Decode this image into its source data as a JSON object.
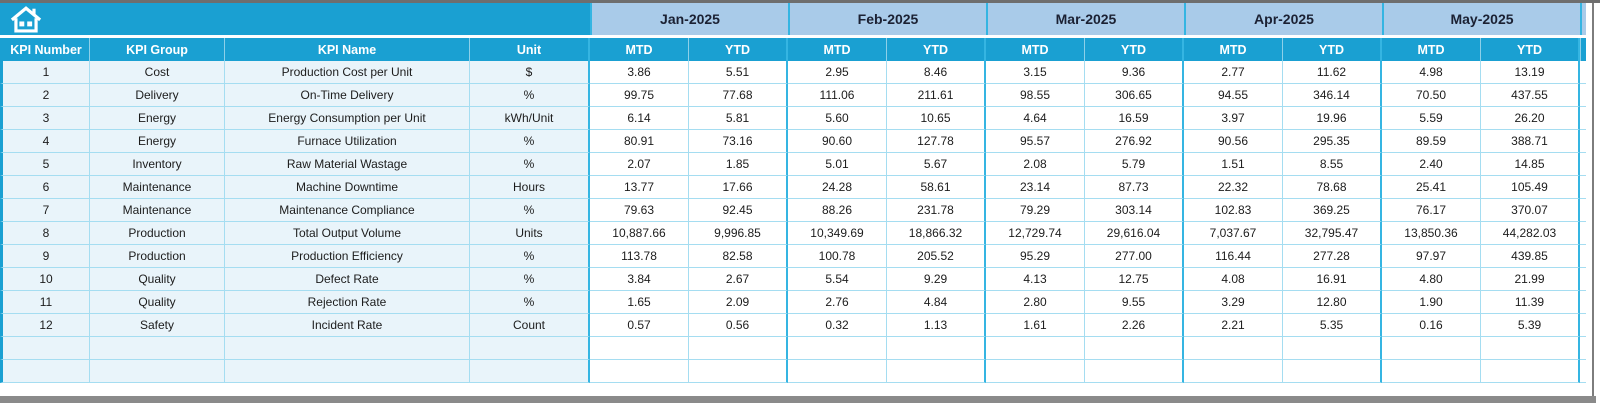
{
  "colors": {
    "header_cyan": "#1AA0D2",
    "month_blue": "#A9CBE9",
    "row_tint": "#E9F4FA",
    "border_strong": "#35B5E2",
    "border_light": "#A5DDF1",
    "month_text": "#1B2133",
    "chrome_gray_top": "#6e6e6e",
    "chrome_gray_bottom": "#8a8a8a"
  },
  "icons": {
    "home": "home-icon"
  },
  "table": {
    "left_columns": [
      "KPI Number",
      "KPI Group",
      "KPI Name",
      "Unit"
    ],
    "months": [
      "Jan-2025",
      "Feb-2025",
      "Mar-2025",
      "Apr-2025",
      "May-2025"
    ],
    "sub_columns": [
      "MTD",
      "YTD"
    ],
    "rows": [
      {
        "number": "1",
        "group": "Cost",
        "name": "Production Cost per Unit",
        "unit": "$",
        "values": [
          "3.86",
          "5.51",
          "2.95",
          "8.46",
          "3.15",
          "9.36",
          "2.77",
          "11.62",
          "4.98",
          "13.19"
        ]
      },
      {
        "number": "2",
        "group": "Delivery",
        "name": "On-Time Delivery",
        "unit": "%",
        "values": [
          "99.75",
          "77.68",
          "111.06",
          "211.61",
          "98.55",
          "306.65",
          "94.55",
          "346.14",
          "70.50",
          "437.55"
        ]
      },
      {
        "number": "3",
        "group": "Energy",
        "name": "Energy Consumption per Unit",
        "unit": "kWh/Unit",
        "values": [
          "6.14",
          "5.81",
          "5.60",
          "10.65",
          "4.64",
          "16.59",
          "3.97",
          "19.96",
          "5.59",
          "26.20"
        ]
      },
      {
        "number": "4",
        "group": "Energy",
        "name": "Furnace Utilization",
        "unit": "%",
        "values": [
          "80.91",
          "73.16",
          "90.60",
          "127.78",
          "95.57",
          "276.92",
          "90.56",
          "295.35",
          "89.59",
          "388.71"
        ]
      },
      {
        "number": "5",
        "group": "Inventory",
        "name": "Raw Material Wastage",
        "unit": "%",
        "values": [
          "2.07",
          "1.85",
          "5.01",
          "5.67",
          "2.08",
          "5.79",
          "1.51",
          "8.55",
          "2.40",
          "14.85"
        ]
      },
      {
        "number": "6",
        "group": "Maintenance",
        "name": "Machine Downtime",
        "unit": "Hours",
        "values": [
          "13.77",
          "17.66",
          "24.28",
          "58.61",
          "23.14",
          "87.73",
          "22.32",
          "78.68",
          "25.41",
          "105.49"
        ]
      },
      {
        "number": "7",
        "group": "Maintenance",
        "name": "Maintenance Compliance",
        "unit": "%",
        "values": [
          "79.63",
          "92.45",
          "88.26",
          "231.78",
          "79.29",
          "303.14",
          "102.83",
          "369.25",
          "76.17",
          "370.07"
        ]
      },
      {
        "number": "8",
        "group": "Production",
        "name": "Total Output Volume",
        "unit": "Units",
        "values": [
          "10,887.66",
          "9,996.85",
          "10,349.69",
          "18,866.32",
          "12,729.74",
          "29,616.04",
          "7,037.67",
          "32,795.47",
          "13,850.36",
          "44,282.03"
        ]
      },
      {
        "number": "9",
        "group": "Production",
        "name": "Production Efficiency",
        "unit": "%",
        "values": [
          "113.78",
          "82.58",
          "100.78",
          "205.52",
          "95.29",
          "277.00",
          "116.44",
          "277.28",
          "97.97",
          "439.85"
        ]
      },
      {
        "number": "10",
        "group": "Quality",
        "name": "Defect Rate",
        "unit": "%",
        "values": [
          "3.84",
          "2.67",
          "5.54",
          "9.29",
          "4.13",
          "12.75",
          "4.08",
          "16.91",
          "4.80",
          "21.99"
        ]
      },
      {
        "number": "11",
        "group": "Quality",
        "name": "Rejection Rate",
        "unit": "%",
        "values": [
          "1.65",
          "2.09",
          "2.76",
          "4.84",
          "2.80",
          "9.55",
          "3.29",
          "12.80",
          "1.90",
          "11.39"
        ]
      },
      {
        "number": "12",
        "group": "Safety",
        "name": "Incident Rate",
        "unit": "Count",
        "values": [
          "0.57",
          "0.56",
          "0.32",
          "1.13",
          "1.61",
          "2.26",
          "2.21",
          "5.35",
          "0.16",
          "5.39"
        ]
      }
    ],
    "empty_row_count": 2
  }
}
